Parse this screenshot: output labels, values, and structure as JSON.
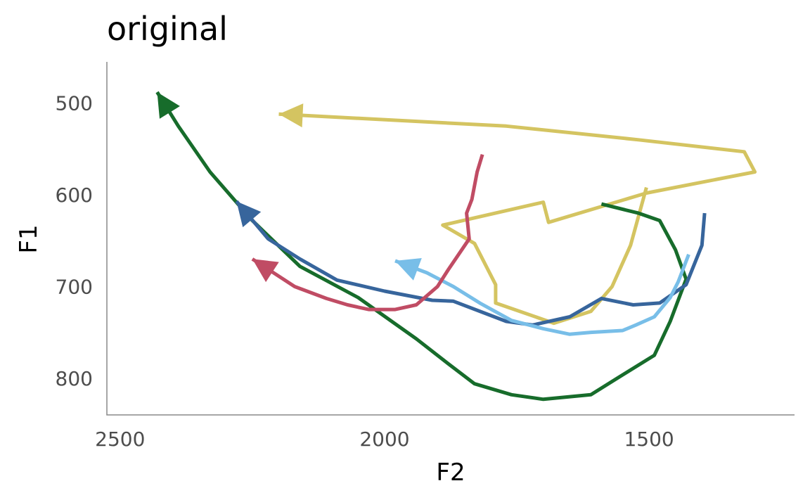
{
  "chart_data": {
    "type": "line",
    "title": "original",
    "xlabel": "F2",
    "ylabel": "F1",
    "x_reversed": true,
    "y_reversed": true,
    "xlim": [
      2525,
      1225
    ],
    "ylim": [
      455,
      840
    ],
    "x_ticks": [
      2500,
      2000,
      1500
    ],
    "y_ticks": [
      500,
      600,
      700,
      800
    ],
    "grid": false,
    "legend": "none",
    "series": [
      {
        "color": "#d4c461",
        "arrow_end": true,
        "points": [
          [
            1505,
            592
          ],
          [
            1535,
            655
          ],
          [
            1570,
            700
          ],
          [
            1610,
            727
          ],
          [
            1680,
            740
          ],
          [
            1790,
            718
          ],
          [
            1790,
            698
          ],
          [
            1830,
            653
          ],
          [
            1890,
            633
          ],
          [
            1700,
            608
          ],
          [
            1690,
            630
          ],
          [
            1505,
            598
          ],
          [
            1300,
            575
          ],
          [
            1320,
            553
          ],
          [
            1520,
            540
          ],
          [
            1770,
            525
          ],
          [
            2200,
            512
          ]
        ]
      },
      {
        "color": "#176c2b",
        "arrow_end": true,
        "points": [
          [
            1590,
            610
          ],
          [
            1520,
            620
          ],
          [
            1480,
            628
          ],
          [
            1450,
            660
          ],
          [
            1430,
            692
          ],
          [
            1460,
            738
          ],
          [
            1490,
            775
          ],
          [
            1560,
            800
          ],
          [
            1610,
            818
          ],
          [
            1700,
            823
          ],
          [
            1760,
            818
          ],
          [
            1830,
            806
          ],
          [
            1880,
            784
          ],
          [
            1940,
            757
          ],
          [
            2050,
            712
          ],
          [
            2160,
            678
          ],
          [
            2250,
            628
          ],
          [
            2330,
            575
          ],
          [
            2390,
            525
          ],
          [
            2430,
            488
          ]
        ]
      },
      {
        "color": "#37659c",
        "arrow_end": true,
        "points": [
          [
            1395,
            620
          ],
          [
            1400,
            655
          ],
          [
            1430,
            698
          ],
          [
            1480,
            718
          ],
          [
            1530,
            720
          ],
          [
            1590,
            713
          ],
          [
            1650,
            733
          ],
          [
            1720,
            742
          ],
          [
            1770,
            738
          ],
          [
            1870,
            716
          ],
          [
            1910,
            715
          ],
          [
            2000,
            705
          ],
          [
            2090,
            693
          ],
          [
            2160,
            670
          ],
          [
            2220,
            648
          ],
          [
            2280,
            607
          ]
        ]
      },
      {
        "color": "#78bee8",
        "arrow_end": true,
        "points": [
          [
            1425,
            665
          ],
          [
            1445,
            695
          ],
          [
            1460,
            712
          ],
          [
            1490,
            733
          ],
          [
            1525,
            742
          ],
          [
            1550,
            748
          ],
          [
            1610,
            750
          ],
          [
            1650,
            752
          ],
          [
            1700,
            746
          ],
          [
            1760,
            737
          ],
          [
            1820,
            718
          ],
          [
            1870,
            700
          ],
          [
            1920,
            685
          ],
          [
            1980,
            672
          ]
        ]
      },
      {
        "color": "#c04c64",
        "arrow_end": true,
        "points": [
          [
            1815,
            556
          ],
          [
            1825,
            575
          ],
          [
            1835,
            605
          ],
          [
            1845,
            620
          ],
          [
            1840,
            648
          ],
          [
            1880,
            682
          ],
          [
            1900,
            700
          ],
          [
            1940,
            720
          ],
          [
            1980,
            725
          ],
          [
            2030,
            725
          ],
          [
            2070,
            720
          ],
          [
            2110,
            713
          ],
          [
            2170,
            700
          ],
          [
            2250,
            670
          ]
        ]
      }
    ]
  }
}
